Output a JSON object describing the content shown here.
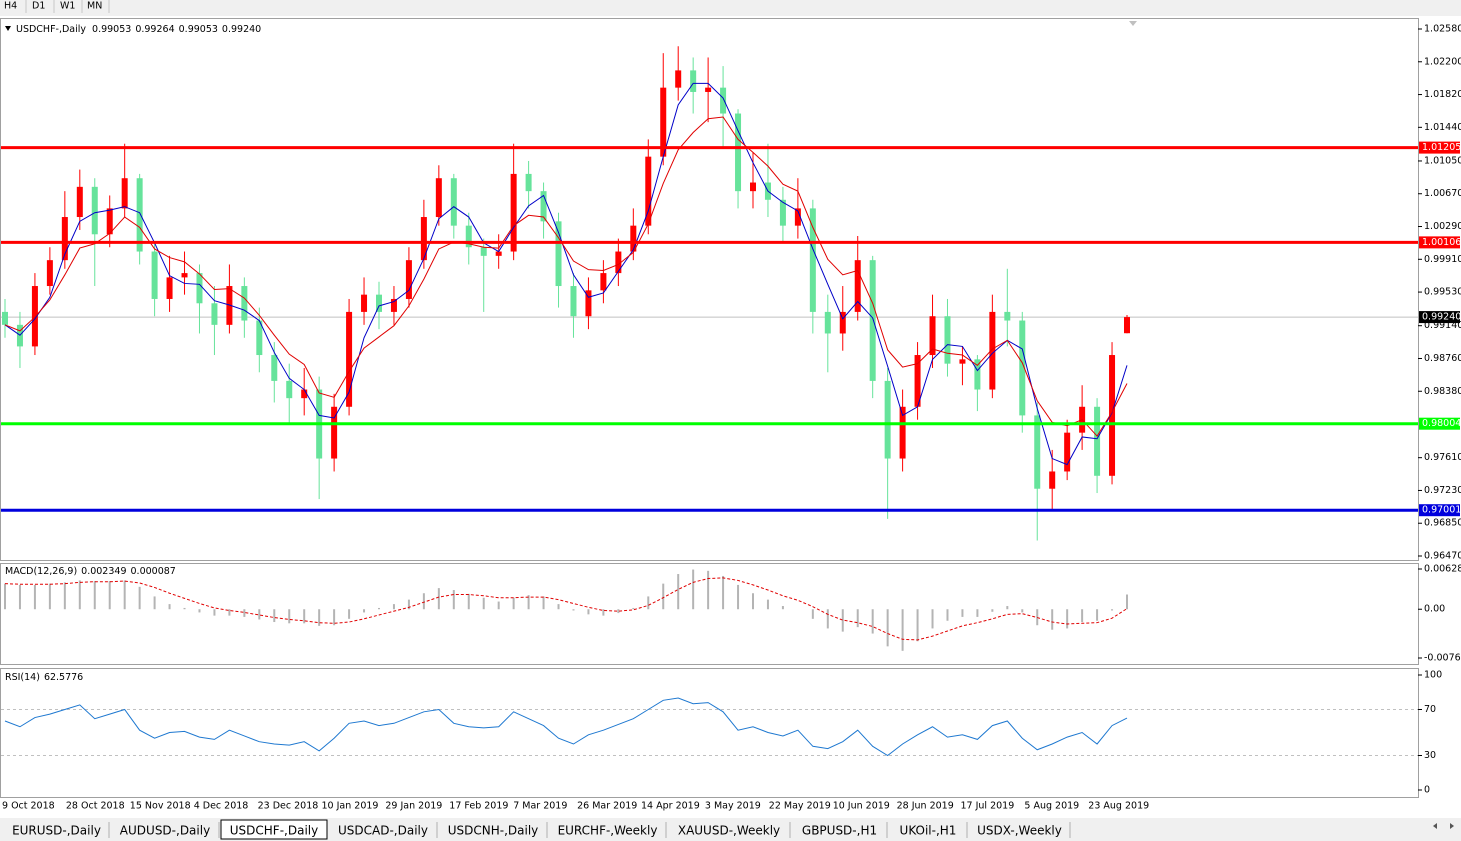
{
  "timeframes": [
    "H4",
    "D1",
    "W1",
    "MN"
  ],
  "tabs": [
    "EURUSD-,Daily",
    "AUDUSD-,Daily",
    "USDCHF-,Daily",
    "USDCAD-,Daily",
    "USDCNH-,Daily",
    "EURCHF-,Weekly",
    "XAUUSD-,Weekly",
    "GBPUSD-,H1",
    "UKOil-,H1",
    "USDX-,Weekly"
  ],
  "active_tab": 2,
  "chart_data": [
    {
      "type": "candlestick",
      "symbol": "USDCHF-,Daily",
      "header_values": [
        "0.99053",
        "0.99264",
        "0.99053",
        "0.99240"
      ],
      "up_color": "#ff0000",
      "down_color": "#66e39b",
      "open": [
        0.993,
        0.9915,
        0.989,
        0.996,
        0.999,
        1.004,
        1.0075,
        1.002,
        1.005,
        1.0085,
        1.0,
        0.9945,
        0.997,
        0.9975,
        0.994,
        0.9915,
        0.996,
        0.992,
        0.988,
        0.985,
        0.983,
        0.984,
        0.976,
        0.982,
        0.993,
        0.995,
        0.993,
        0.9945,
        0.999,
        1.004,
        1.0085,
        1.003,
        1.0005,
        0.9995,
        1.0,
        1.009,
        1.007,
        1.0035,
        0.996,
        0.9925,
        0.9955,
        0.9975,
        1.0,
        1.003,
        1.011,
        1.019,
        1.021,
        1.0185,
        1.019,
        1.016,
        1.007,
        1.008,
        1.006,
        1.003,
        1.005,
        0.993,
        0.9905,
        0.993,
        0.999,
        0.985,
        0.976,
        0.982,
        0.988,
        0.9925,
        0.987,
        0.9875,
        0.984,
        0.993,
        0.992,
        0.981,
        0.9725,
        0.9745,
        0.979,
        0.982,
        0.974,
        0.99053
      ],
      "high": [
        0.9945,
        0.993,
        0.9975,
        1.0005,
        1.007,
        1.0095,
        1.0085,
        1.0065,
        1.0125,
        1.009,
        1.001,
        0.9995,
        1.0,
        0.9985,
        0.996,
        0.9985,
        0.997,
        0.9935,
        0.9895,
        0.987,
        0.9865,
        0.9855,
        0.9835,
        0.9945,
        0.997,
        0.9965,
        0.996,
        1.0005,
        1.006,
        1.01,
        1.009,
        1.0045,
        1.0015,
        1.002,
        1.0125,
        1.0105,
        1.008,
        1.0045,
        0.9975,
        0.997,
        0.999,
        1.0015,
        1.005,
        1.013,
        1.023,
        1.0238,
        1.0225,
        1.0225,
        1.0215,
        1.0165,
        1.0115,
        1.0125,
        1.0075,
        1.0085,
        1.006,
        0.995,
        0.996,
        1.0018,
        0.9995,
        0.9865,
        0.984,
        0.9895,
        0.995,
        0.9945,
        0.989,
        0.988,
        0.995,
        0.998,
        0.993,
        0.9825,
        0.977,
        0.9805,
        0.9845,
        0.983,
        0.9895,
        0.99264
      ],
      "low": [
        0.99,
        0.9865,
        0.988,
        0.995,
        0.998,
        1.0025,
        0.996,
        1.0005,
        1.004,
        0.9985,
        0.9925,
        0.993,
        0.995,
        0.9905,
        0.988,
        0.9905,
        0.99,
        0.986,
        0.9825,
        0.98,
        0.981,
        0.9713,
        0.9745,
        0.981,
        0.9915,
        0.991,
        0.9915,
        0.9935,
        0.998,
        1.003,
        1.0015,
        0.9985,
        0.993,
        0.998,
        0.999,
        1.005,
        1.0015,
        0.9935,
        0.99,
        0.991,
        0.994,
        0.996,
        0.999,
        1.002,
        1.01,
        1.0175,
        1.016,
        1.015,
        1.012,
        1.005,
        1.005,
        1.004,
        1.001,
        1.0015,
        0.9905,
        0.986,
        0.9885,
        0.992,
        0.983,
        0.969,
        0.9745,
        0.9805,
        0.9865,
        0.9855,
        0.9845,
        0.9815,
        0.983,
        0.989,
        0.979,
        0.9665,
        0.97,
        0.9735,
        0.977,
        0.972,
        0.973,
        0.99053
      ],
      "close": [
        0.9915,
        0.989,
        0.996,
        0.999,
        1.004,
        1.0075,
        1.002,
        1.005,
        1.0085,
        1.0,
        0.9945,
        0.997,
        0.9975,
        0.994,
        0.9915,
        0.996,
        0.992,
        0.988,
        0.985,
        0.983,
        0.984,
        0.976,
        0.982,
        0.993,
        0.995,
        0.993,
        0.9945,
        0.999,
        1.004,
        1.0085,
        1.003,
        1.0005,
        0.9995,
        1.0,
        1.009,
        1.007,
        1.0035,
        0.996,
        0.9925,
        0.9955,
        0.9975,
        1.0,
        1.003,
        1.011,
        1.019,
        1.021,
        1.0185,
        1.019,
        1.016,
        1.007,
        1.008,
        1.006,
        1.003,
        1.005,
        0.993,
        0.9905,
        0.993,
        0.999,
        0.985,
        0.976,
        0.982,
        0.988,
        0.9925,
        0.987,
        0.9875,
        0.984,
        0.993,
        0.992,
        0.981,
        0.9725,
        0.9745,
        0.979,
        0.982,
        0.974,
        0.988,
        0.9924
      ],
      "lines": [
        {
          "color": "#0000c8",
          "values": [
            0.9915,
            0.9903,
            0.9922,
            0.9947,
            0.9997,
            1.0035,
            1.0045,
            1.0048,
            1.0052,
            1.0045,
            1.001,
            0.9972,
            0.9963,
            0.9962,
            0.9943,
            0.9938,
            0.9932,
            0.992,
            0.9883,
            0.9853,
            0.984,
            0.981,
            0.9807,
            0.9837,
            0.99,
            0.9937,
            0.9942,
            0.9955,
            0.9992,
            1.0038,
            1.0052,
            1.004,
            1.001,
            1.0,
            1.0028,
            1.0053,
            1.0065,
            1.0022,
            0.9973,
            0.9947,
            0.9952,
            0.9977,
            1.0002,
            1.0047,
            1.011,
            1.017,
            1.0195,
            1.0195,
            1.0178,
            1.014,
            1.0103,
            1.007,
            1.0057,
            1.0047,
            1.0003,
            0.9962,
            0.9922,
            0.9942,
            0.9923,
            0.9867,
            0.981,
            0.982,
            0.9875,
            0.9892,
            0.989,
            0.9862,
            0.9882,
            0.9897,
            0.9887,
            0.9818,
            0.976,
            0.9753,
            0.9785,
            0.9783,
            0.9813,
            0.9868
          ]
        },
        {
          "color": "#e00000",
          "values": [
            0.9915,
            0.9908,
            0.9924,
            0.9944,
            0.9973,
            1.0004,
            1.0009,
            1.0021,
            1.004,
            1.0028,
            1.0003,
            0.9993,
            0.9988,
            0.9974,
            0.9956,
            0.9957,
            0.9946,
            0.9926,
            0.9903,
            0.9881,
            0.9869,
            0.9836,
            0.9831,
            0.9861,
            0.9888,
            0.9901,
            0.9914,
            0.9937,
            0.9968,
            1.0003,
            1.0011,
            1.0009,
            1.0005,
            1.0004,
            1.003,
            1.0042,
            1.004,
            1.0016,
            0.9989,
            0.9979,
            0.9978,
            0.9985,
            0.9999,
            1.0032,
            1.0079,
            1.0118,
            1.0138,
            1.0154,
            1.0156,
            1.013,
            1.0115,
            1.0099,
            1.0078,
            1.007,
            1.0028,
            0.9991,
            0.9973,
            0.9978,
            0.994,
            0.9886,
            0.9866,
            0.987,
            0.9887,
            0.9882,
            0.988,
            0.9868,
            0.9887,
            0.9897,
            0.9871,
            0.9827,
            0.9802,
            0.9798,
            0.9805,
            0.9786,
            0.9814,
            0.9847
          ]
        }
      ],
      "ylim": [
        0.9647,
        1.0258
      ],
      "yticks": [
        {
          "value": 1.0258,
          "label": "1.02580"
        },
        {
          "value": 1.022,
          "label": "1.02200"
        },
        {
          "value": 1.0182,
          "label": "1.01820"
        },
        {
          "value": 1.0144,
          "label": "1.01440"
        },
        {
          "value": 1.0105,
          "label": "1.01050"
        },
        {
          "value": 1.0067,
          "label": "1.00670"
        },
        {
          "value": 1.0029,
          "label": "1.00290"
        },
        {
          "value": 0.9991,
          "label": "0.99910"
        },
        {
          "value": 0.9953,
          "label": "0.99530"
        },
        {
          "value": 0.9914,
          "label": "0.99140"
        },
        {
          "value": 0.9876,
          "label": "0.98760"
        },
        {
          "value": 0.9838,
          "label": "0.98380"
        },
        {
          "value": 0.9761,
          "label": "0.97610"
        },
        {
          "value": 0.9723,
          "label": "0.97230"
        },
        {
          "value": 0.9685,
          "label": "0.96850"
        },
        {
          "value": 0.9647,
          "label": "0.96470"
        }
      ],
      "levels": [
        {
          "value": 1.01205,
          "color": "#ff0000"
        },
        {
          "value": 1.00106,
          "color": "#ff0000"
        },
        {
          "value": 0.98004,
          "color": "#00ff00"
        },
        {
          "value": 0.97001,
          "color": "#0000dd"
        }
      ],
      "current_price": {
        "value": 0.9924,
        "label": "0.99240"
      },
      "x_labels": [
        "9 Oct 2018",
        "28 Oct 2018",
        "15 Nov 2018",
        "4 Dec 2018",
        "23 Dec 2018",
        "10 Jan 2019",
        "29 Jan 2019",
        "17 Feb 2019",
        "7 Mar 2019",
        "26 Mar 2019",
        "14 Apr 2019",
        "3 May 2019",
        "22 May 2019",
        "10 Jun 2019",
        "28 Jun 2019",
        "17 Jul 2019",
        "5 Aug 2019",
        "23 Aug 2019"
      ]
    },
    {
      "type": "macd",
      "title": "MACD(12,26,9)",
      "header_values": [
        0.002349,
        8.7e-05
      ],
      "histogram": {
        "color": "#b4b4b4",
        "values": [
          0.004,
          0.0038,
          0.0038,
          0.004,
          0.0042,
          0.0045,
          0.0044,
          0.0044,
          0.0045,
          0.0035,
          0.002,
          0.0008,
          0.0002,
          -0.0005,
          -0.001,
          -0.001,
          -0.0012,
          -0.0016,
          -0.002,
          -0.0022,
          -0.0022,
          -0.0026,
          -0.0025,
          -0.0015,
          -0.0005,
          0.0002,
          0.0008,
          0.0015,
          0.0025,
          0.0033,
          0.003,
          0.0024,
          0.0018,
          0.0012,
          0.0018,
          0.0022,
          0.002,
          0.0008,
          -0.0002,
          -0.0008,
          -0.001,
          -0.0006,
          0.0002,
          0.002,
          0.004,
          0.0055,
          0.0062,
          0.006,
          0.0052,
          0.0038,
          0.0025,
          0.0015,
          0.0005,
          0,
          -0.0015,
          -0.003,
          -0.0035,
          -0.0028,
          -0.0038,
          -0.0058,
          -0.0065,
          -0.005,
          -0.003,
          -0.0018,
          -0.0012,
          -0.0012,
          -0.0004,
          0.0005,
          -0.0005,
          -0.0025,
          -0.0032,
          -0.003,
          -0.002,
          -0.0018,
          -0.0002,
          0.0023
        ]
      },
      "signal": {
        "color": "#e00000",
        "values": [
          0.004,
          0.0039,
          0.0039,
          0.0039,
          0.004,
          0.0042,
          0.0043,
          0.0043,
          0.0044,
          0.0041,
          0.0034,
          0.0025,
          0.0017,
          0.0009,
          0.0002,
          -0.0002,
          -0.0005,
          -0.0009,
          -0.0013,
          -0.0016,
          -0.0018,
          -0.0021,
          -0.0022,
          -0.002,
          -0.0015,
          -0.0009,
          -0.0003,
          0.0003,
          0.0011,
          0.0019,
          0.0023,
          0.0023,
          0.0021,
          0.0018,
          0.0018,
          0.0019,
          0.0019,
          0.0015,
          0.0009,
          0.0003,
          -0.0002,
          -0.0003,
          -0.0001,
          0.0006,
          0.0018,
          0.0031,
          0.0042,
          0.0048,
          0.0049,
          0.0045,
          0.0038,
          0.003,
          0.0021,
          0.0014,
          0.0004,
          -0.0008,
          -0.0017,
          -0.0021,
          -0.0027,
          -0.0038,
          -0.0047,
          -0.0048,
          -0.0042,
          -0.0034,
          -0.0026,
          -0.0021,
          -0.0015,
          -0.0008,
          -0.0007,
          -0.0013,
          -0.002,
          -0.0023,
          -0.0022,
          -0.0021,
          -0.0014,
          0.0001
        ]
      },
      "ylim": [
        -0.00762,
        0.006286
      ],
      "yticks": [
        0.006286,
        {
          "value": 0,
          "label": "0.00"
        },
        -0.00762
      ]
    },
    {
      "type": "rsi",
      "title": "RSI(14)",
      "header_value": 62.5776,
      "color": "#1e78d0",
      "values": [
        60,
        55,
        63,
        66,
        70,
        74,
        62,
        66,
        70,
        52,
        45,
        50,
        51,
        46,
        44,
        52,
        47,
        42,
        40,
        39,
        42,
        34,
        45,
        58,
        60,
        56,
        58,
        63,
        68,
        70,
        58,
        55,
        54,
        55,
        68,
        62,
        56,
        45,
        40,
        48,
        52,
        57,
        62,
        70,
        78,
        80,
        75,
        76,
        68,
        52,
        55,
        50,
        47,
        52,
        38,
        36,
        42,
        52,
        38,
        30,
        40,
        48,
        55,
        46,
        48,
        44,
        56,
        60,
        45,
        35,
        40,
        46,
        50,
        40,
        56,
        62.58
      ],
      "ylim": [
        0,
        100
      ],
      "yticks": [
        100,
        70,
        30,
        0
      ],
      "levels": [
        70,
        30
      ]
    }
  ]
}
